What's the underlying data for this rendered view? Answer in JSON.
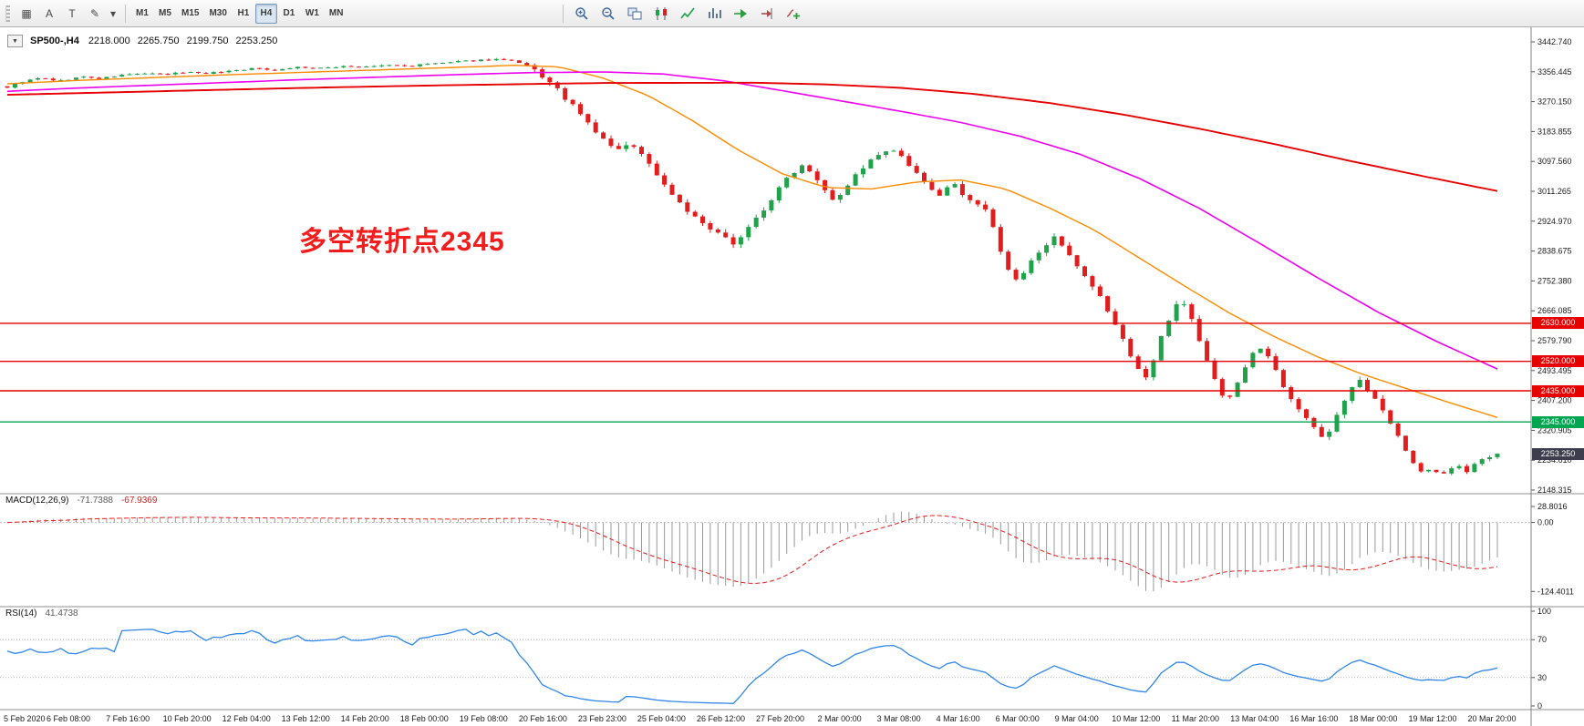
{
  "toolbar": {
    "left_icons": [
      {
        "name": "tick-chart-icon",
        "glyph": "▦"
      },
      {
        "name": "arrow-tool-icon",
        "glyph": "A"
      },
      {
        "name": "text-tool-icon",
        "glyph": "T"
      },
      {
        "name": "draw-tools-icon",
        "glyph": "✎"
      },
      {
        "name": "draw-tools-dropdown-icon",
        "glyph": "▾"
      }
    ],
    "timeframes": [
      {
        "label": "M1",
        "active": false
      },
      {
        "label": "M5",
        "active": false
      },
      {
        "label": "M15",
        "active": false
      },
      {
        "label": "M30",
        "active": false
      },
      {
        "label": "H1",
        "active": false
      },
      {
        "label": "H4",
        "active": true
      },
      {
        "label": "D1",
        "active": false
      },
      {
        "label": "W1",
        "active": false
      },
      {
        "label": "MN",
        "active": false
      }
    ],
    "right_icons": [
      "zoom-in-icon",
      "zoom-out-icon",
      "tile-windows-icon",
      "candlestick-chart-icon",
      "line-chart-icon",
      "bar-chart-icon",
      "auto-scroll-icon",
      "chart-shift-icon",
      "indicators-icon"
    ]
  },
  "chart": {
    "collapse_arrow": "▼",
    "symbol_period": "SP500-,H4",
    "open": "2218.000",
    "high": "2265.750",
    "low": "2199.750",
    "close": "2253.250",
    "annotation_text": "多空转折点2345"
  },
  "indicators": {
    "macd": {
      "name": "MACD(12,26,9)",
      "value_main": "-71.7388",
      "value_signal": "-67.9369"
    },
    "rsi": {
      "name": "RSI(14)",
      "value": "41.4738"
    }
  },
  "colors": {
    "candle_up": "#1fa24a",
    "candle_down": "#e11d1d",
    "ma_fast": "#ff8a00",
    "ma_mid": "#ee00ee",
    "ma_slow": "#e60000",
    "macd_histogram": "#9a9a9a",
    "macd_signal": "#e11d1d",
    "rsi_line": "#2f86eb",
    "annotation": "#f21d1d",
    "price_badge_bg": "#3d3d4d",
    "level_red": "#e60000",
    "level_green": "#00a650"
  },
  "chart_data": {
    "type": "candlestick",
    "symbol": "SP500-",
    "timeframe": "H4",
    "num_candles": 196,
    "price_ticks": [
      "3442.740",
      "3356.445",
      "3270.150",
      "3183.855",
      "3097.560",
      "3011.265",
      "2924.970",
      "2838.675",
      "2752.380",
      "2666.085",
      "2579.790",
      "2493.495",
      "2407.200",
      "2320.905",
      "2234.610",
      "2148.315"
    ],
    "time_labels": [
      "5 Feb 2020",
      "6 Feb 08:00",
      "7 Feb 16:00",
      "10 Feb 20:00",
      "12 Feb 04:00",
      "13 Feb 12:00",
      "14 Feb 20:00",
      "18 Feb 00:00",
      "19 Feb 08:00",
      "20 Feb 16:00",
      "23 Feb 23:00",
      "25 Feb 04:00",
      "26 Feb 12:00",
      "27 Feb 20:00",
      "2 Mar 00:00",
      "3 Mar 08:00",
      "4 Mar 16:00",
      "6 Mar 00:00",
      "9 Mar 04:00",
      "10 Mar 12:00",
      "11 Mar 20:00",
      "13 Mar 04:00",
      "16 Mar 16:00",
      "18 Mar 00:00",
      "19 Mar 12:00",
      "20 Mar 20:00"
    ],
    "levels": [
      {
        "value": 2630.0,
        "label": "2630.000",
        "color": "#e60000"
      },
      {
        "value": 2520.0,
        "label": "2520.000",
        "color": "#e60000"
      },
      {
        "value": 2435.0,
        "label": "2435.000",
        "color": "#e60000"
      },
      {
        "value": 2345.0,
        "label": "2345.000",
        "color": "#00a650"
      }
    ],
    "current_price": {
      "value": 2253.25,
      "label": "2253.250"
    },
    "price_path": [
      [
        0.0,
        3312
      ],
      [
        0.01,
        3328
      ],
      [
        0.022,
        3338
      ],
      [
        0.035,
        3330
      ],
      [
        0.05,
        3342
      ],
      [
        0.062,
        3336
      ],
      [
        0.075,
        3346
      ],
      [
        0.09,
        3352
      ],
      [
        0.105,
        3348
      ],
      [
        0.12,
        3356
      ],
      [
        0.135,
        3352
      ],
      [
        0.15,
        3360
      ],
      [
        0.165,
        3366
      ],
      [
        0.18,
        3362
      ],
      [
        0.195,
        3370
      ],
      [
        0.21,
        3366
      ],
      [
        0.225,
        3373
      ],
      [
        0.24,
        3370
      ],
      [
        0.255,
        3376
      ],
      [
        0.27,
        3373
      ],
      [
        0.285,
        3380
      ],
      [
        0.3,
        3384
      ],
      [
        0.315,
        3390
      ],
      [
        0.33,
        3393
      ],
      [
        0.34,
        3386
      ],
      [
        0.35,
        3372
      ],
      [
        0.36,
        3340
      ],
      [
        0.37,
        3300
      ],
      [
        0.38,
        3255
      ],
      [
        0.39,
        3205
      ],
      [
        0.4,
        3160
      ],
      [
        0.41,
        3130
      ],
      [
        0.42,
        3148
      ],
      [
        0.43,
        3095
      ],
      [
        0.44,
        3035
      ],
      [
        0.45,
        2985
      ],
      [
        0.46,
        2940
      ],
      [
        0.47,
        2905
      ],
      [
        0.48,
        2878
      ],
      [
        0.488,
        2862
      ],
      [
        0.495,
        2895
      ],
      [
        0.505,
        2945
      ],
      [
        0.515,
        3000
      ],
      [
        0.525,
        3060
      ],
      [
        0.535,
        3092
      ],
      [
        0.545,
        3040
      ],
      [
        0.555,
        2985
      ],
      [
        0.565,
        3035
      ],
      [
        0.575,
        3085
      ],
      [
        0.585,
        3115
      ],
      [
        0.595,
        3130
      ],
      [
        0.605,
        3085
      ],
      [
        0.615,
        3035
      ],
      [
        0.625,
        3000
      ],
      [
        0.635,
        3030
      ],
      [
        0.645,
        2990
      ],
      [
        0.655,
        2966
      ],
      [
        0.662,
        2905
      ],
      [
        0.67,
        2790
      ],
      [
        0.678,
        2748
      ],
      [
        0.686,
        2800
      ],
      [
        0.694,
        2850
      ],
      [
        0.702,
        2878
      ],
      [
        0.71,
        2838
      ],
      [
        0.718,
        2790
      ],
      [
        0.726,
        2745
      ],
      [
        0.734,
        2700
      ],
      [
        0.742,
        2640
      ],
      [
        0.75,
        2570
      ],
      [
        0.758,
        2505
      ],
      [
        0.764,
        2472
      ],
      [
        0.77,
        2530
      ],
      [
        0.776,
        2610
      ],
      [
        0.782,
        2668
      ],
      [
        0.788,
        2706
      ],
      [
        0.794,
        2650
      ],
      [
        0.8,
        2580
      ],
      [
        0.806,
        2510
      ],
      [
        0.812,
        2450
      ],
      [
        0.818,
        2406
      ],
      [
        0.824,
        2440
      ],
      [
        0.83,
        2500
      ],
      [
        0.836,
        2540
      ],
      [
        0.842,
        2566
      ],
      [
        0.848,
        2520
      ],
      [
        0.854,
        2470
      ],
      [
        0.86,
        2425
      ],
      [
        0.866,
        2390
      ],
      [
        0.872,
        2355
      ],
      [
        0.878,
        2318
      ],
      [
        0.884,
        2295
      ],
      [
        0.89,
        2345
      ],
      [
        0.896,
        2400
      ],
      [
        0.902,
        2440
      ],
      [
        0.908,
        2462
      ],
      [
        0.914,
        2430
      ],
      [
        0.92,
        2395
      ],
      [
        0.926,
        2360
      ],
      [
        0.932,
        2320
      ],
      [
        0.938,
        2268
      ],
      [
        0.944,
        2222
      ],
      [
        0.95,
        2195
      ],
      [
        0.956,
        2212
      ],
      [
        0.962,
        2190
      ],
      [
        0.968,
        2205
      ],
      [
        0.974,
        2222
      ],
      [
        0.98,
        2200
      ],
      [
        0.986,
        2226
      ],
      [
        0.992,
        2240
      ],
      [
        1.0,
        2253.25
      ]
    ],
    "ma_fast_path": [
      [
        0,
        3322
      ],
      [
        0.05,
        3332
      ],
      [
        0.1,
        3340
      ],
      [
        0.15,
        3348
      ],
      [
        0.2,
        3355
      ],
      [
        0.25,
        3362
      ],
      [
        0.3,
        3369
      ],
      [
        0.34,
        3375
      ],
      [
        0.37,
        3371
      ],
      [
        0.4,
        3338
      ],
      [
        0.43,
        3288
      ],
      [
        0.46,
        3215
      ],
      [
        0.49,
        3132
      ],
      [
        0.52,
        3062
      ],
      [
        0.55,
        3022
      ],
      [
        0.58,
        3018
      ],
      [
        0.61,
        3038
      ],
      [
        0.64,
        3044
      ],
      [
        0.67,
        3018
      ],
      [
        0.7,
        2962
      ],
      [
        0.73,
        2898
      ],
      [
        0.76,
        2818
      ],
      [
        0.79,
        2738
      ],
      [
        0.82,
        2660
      ],
      [
        0.85,
        2592
      ],
      [
        0.88,
        2532
      ],
      [
        0.91,
        2482
      ],
      [
        0.94,
        2440
      ],
      [
        0.97,
        2398
      ],
      [
        1.0,
        2358
      ]
    ],
    "ma_mid_path": [
      [
        0,
        3300
      ],
      [
        0.05,
        3310
      ],
      [
        0.1,
        3318
      ],
      [
        0.15,
        3326
      ],
      [
        0.2,
        3334
      ],
      [
        0.25,
        3341
      ],
      [
        0.3,
        3348
      ],
      [
        0.35,
        3354
      ],
      [
        0.4,
        3356
      ],
      [
        0.44,
        3350
      ],
      [
        0.48,
        3331
      ],
      [
        0.52,
        3302
      ],
      [
        0.56,
        3272
      ],
      [
        0.6,
        3242
      ],
      [
        0.64,
        3210
      ],
      [
        0.68,
        3170
      ],
      [
        0.72,
        3118
      ],
      [
        0.76,
        3048
      ],
      [
        0.8,
        2962
      ],
      [
        0.84,
        2862
      ],
      [
        0.88,
        2760
      ],
      [
        0.92,
        2662
      ],
      [
        0.96,
        2576
      ],
      [
        1.0,
        2498
      ]
    ],
    "ma_slow_path": [
      [
        0,
        3290
      ],
      [
        0.1,
        3300
      ],
      [
        0.2,
        3310
      ],
      [
        0.3,
        3318
      ],
      [
        0.4,
        3324
      ],
      [
        0.5,
        3325
      ],
      [
        0.55,
        3320
      ],
      [
        0.6,
        3310
      ],
      [
        0.65,
        3292
      ],
      [
        0.7,
        3266
      ],
      [
        0.75,
        3232
      ],
      [
        0.8,
        3192
      ],
      [
        0.85,
        3148
      ],
      [
        0.9,
        3100
      ],
      [
        0.95,
        3055
      ],
      [
        1.0,
        3012
      ]
    ],
    "macd_ticks": [
      "28.8016",
      "0.00",
      "-124.4011"
    ],
    "macd_min": -124.4011,
    "rsi_ticks": [
      "100",
      "70",
      "30",
      "0"
    ],
    "rsi_levels": [
      70,
      30
    ]
  }
}
